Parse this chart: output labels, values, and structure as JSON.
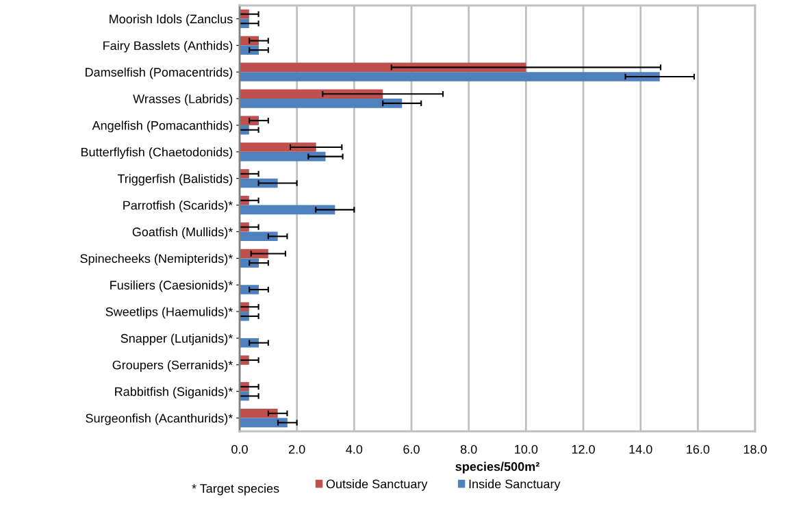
{
  "chart_data": {
    "type": "bar",
    "orientation": "horizontal",
    "xlabel": "species/500m²",
    "categories": [
      "Moorish Idols (Zanclus",
      "Fairy Basslets (Anthids)",
      "Damselfish (Pomacentrids)",
      "Wrasses (Labrids)",
      "Angelfish (Pomacanthids)",
      "Butterflyfish (Chaetodonids)",
      "Triggerfish (Balistids)",
      "Parrotfish (Scarids)*",
      "Goatfish (Mullids)*",
      "Spinecheeks (Nemipterids)*",
      "Fusiliers (Caesionids)*",
      "Sweetlips (Haemulids)*",
      "Snapper (Lutjanids)*",
      "Groupers (Serranids)*",
      "Rabbitfish (Siganids)*",
      "Surgeonfish (Acanthurids)*"
    ],
    "series": [
      {
        "name": "Outside Sanctuary",
        "color": "#c0504d",
        "values": [
          0.33,
          0.67,
          10.0,
          5.0,
          0.67,
          2.67,
          0.33,
          0.33,
          0.33,
          1.0,
          0,
          0.33,
          0,
          0.33,
          0.33,
          1.33
        ],
        "errors": [
          0.33,
          0.33,
          4.7,
          2.1,
          0.33,
          0.9,
          0.33,
          0.33,
          0.33,
          0.6,
          null,
          0.33,
          null,
          0.33,
          0.33,
          0.33
        ]
      },
      {
        "name": "Inside Sanctuary",
        "color": "#4f81bd",
        "values": [
          0.33,
          0.67,
          14.67,
          5.67,
          0.33,
          3.0,
          1.33,
          3.33,
          1.33,
          0.67,
          0.67,
          0.33,
          0.67,
          0,
          0.33,
          1.67
        ],
        "errors": [
          0.33,
          0.33,
          1.2,
          0.67,
          0.33,
          0.6,
          0.67,
          0.67,
          0.33,
          0.33,
          0.33,
          0.33,
          0.33,
          null,
          0.33,
          0.33
        ]
      }
    ],
    "xlim": [
      0,
      18
    ],
    "xticks": [
      {
        "value": 0,
        "label": "0.0"
      },
      {
        "value": 2,
        "label": "2.0"
      },
      {
        "value": 4,
        "label": "4.0"
      },
      {
        "value": 6,
        "label": "6.0"
      },
      {
        "value": 8,
        "label": "8.0"
      },
      {
        "value": 10,
        "label": "10.0"
      },
      {
        "value": 12,
        "label": "12.0"
      },
      {
        "value": 14,
        "label": "14.0"
      },
      {
        "value": 16,
        "label": "16.0"
      },
      {
        "value": 18,
        "label": "18.0"
      }
    ],
    "grid": "x",
    "legend": "bottom",
    "annotations": [
      "* Target species"
    ]
  }
}
